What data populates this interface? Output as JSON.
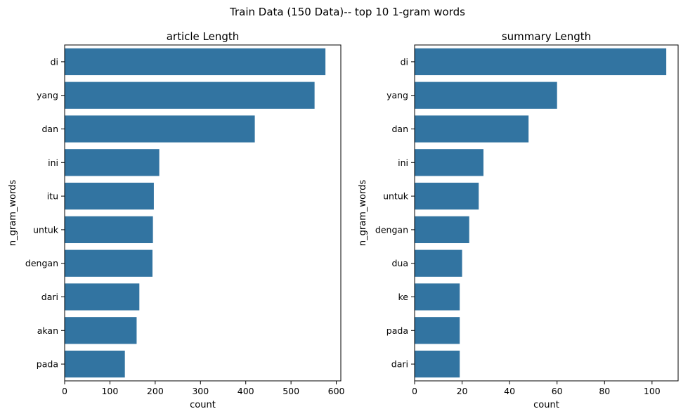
{
  "figure": {
    "suptitle": "Train Data (150 Data)-- top 10 1-gram words"
  },
  "chart_data": [
    {
      "type": "bar",
      "orientation": "horizontal",
      "title": "article Length",
      "xlabel": "count",
      "ylabel": "n_gram_words",
      "categories": [
        "di",
        "yang",
        "dan",
        "ini",
        "itu",
        "untuk",
        "dengan",
        "dari",
        "akan",
        "pada"
      ],
      "values": [
        576,
        552,
        420,
        209,
        197,
        195,
        194,
        165,
        159,
        133
      ],
      "xlim": [
        0,
        610
      ],
      "xticks": [
        0,
        100,
        200,
        300,
        400,
        500,
        600
      ],
      "bar_color": "#3274a1",
      "grid": false
    },
    {
      "type": "bar",
      "orientation": "horizontal",
      "title": "summary Length",
      "xlabel": "count",
      "ylabel": "n_gram_words",
      "categories": [
        "di",
        "yang",
        "dan",
        "ini",
        "untuk",
        "dengan",
        "dua",
        "ke",
        "pada",
        "dari"
      ],
      "values": [
        106,
        60,
        48,
        29,
        27,
        23,
        20,
        19,
        19,
        19
      ],
      "xlim": [
        0,
        111
      ],
      "xticks": [
        0,
        20,
        40,
        60,
        80,
        100
      ],
      "bar_color": "#3274a1",
      "grid": false
    }
  ]
}
